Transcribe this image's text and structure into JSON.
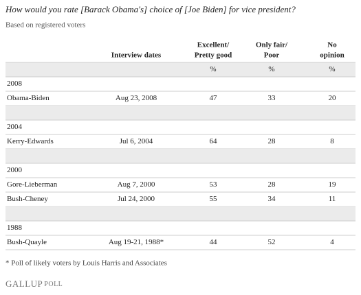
{
  "title": "How would you rate [Barack Obama's] choice of [Joe Biden] for vice president?",
  "subtitle": "Based on registered voters",
  "table": {
    "header": [
      [
        "Interview dates"
      ],
      [
        "Excellent/",
        "Pretty good"
      ],
      [
        "Only fair/",
        "Poor"
      ],
      [
        "No",
        "opinion"
      ]
    ],
    "units": [
      "%",
      "%",
      "%"
    ],
    "groups": [
      {
        "year": "2008",
        "rows": [
          [
            "Obama-Biden",
            "Aug 23, 2008",
            47,
            33,
            20
          ]
        ]
      },
      {
        "year": "2004",
        "rows": [
          [
            "Kerry-Edwards",
            "Jul 6, 2004",
            64,
            28,
            8
          ]
        ]
      },
      {
        "year": "2000",
        "rows": [
          [
            "Gore-Lieberman",
            "Aug 7, 2000",
            53,
            28,
            19
          ],
          [
            "Bush-Cheney",
            "Jul 24, 2000",
            55,
            34,
            11
          ]
        ]
      },
      {
        "year": "1988",
        "rows": [
          [
            "Bush-Quayle",
            "Aug 19-21, 1988*",
            44,
            52,
            4
          ]
        ]
      }
    ]
  },
  "footnote": "* Poll of likely voters by Louis Harris and Associates",
  "logo": [
    "GALLUP",
    "POLL"
  ]
}
